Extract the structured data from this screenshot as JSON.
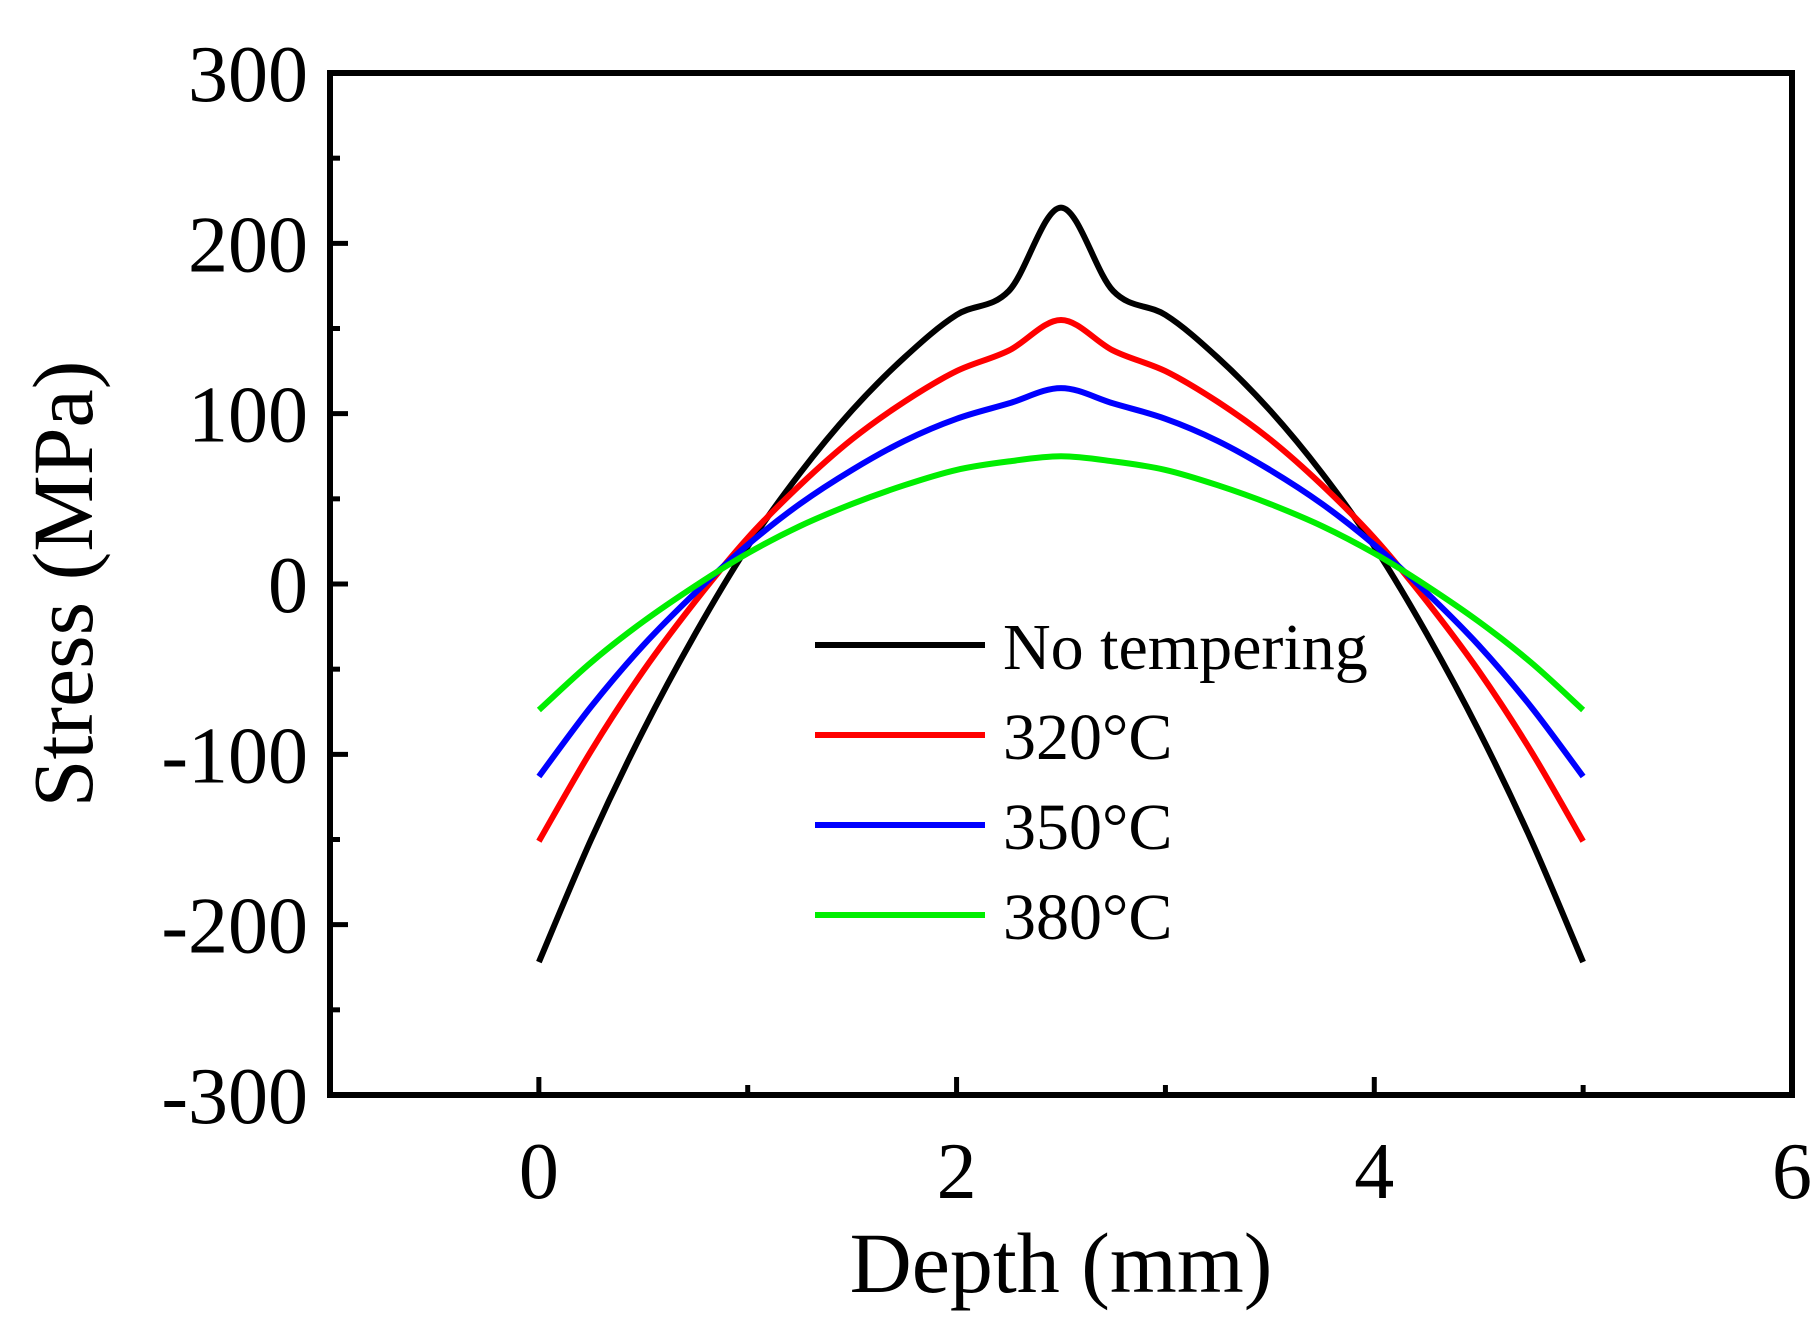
{
  "chart_data": {
    "type": "line",
    "title": "",
    "xlabel": "Depth (mm)",
    "ylabel": "Stress (MPa)",
    "xlim": [
      -1,
      6
    ],
    "ylim": [
      -300,
      300
    ],
    "xticks": [
      0,
      2,
      4,
      6
    ],
    "xtick_labels": [
      "0",
      "2",
      "4",
      "6"
    ],
    "yticks": [
      -300,
      -200,
      -100,
      0,
      100,
      200,
      300
    ],
    "ytick_labels": [
      "-300",
      "-200",
      "-100",
      "0",
      "100",
      "200",
      "300"
    ],
    "x": [
      0,
      0.25,
      0.5,
      0.75,
      1.0,
      1.25,
      1.5,
      1.75,
      2.0,
      2.25,
      2.5,
      2.75,
      3.0,
      3.25,
      3.5,
      3.75,
      4.0,
      4.25,
      4.5,
      4.75,
      5.0
    ],
    "series": [
      {
        "name": "No tempering",
        "color": "#000000",
        "values": [
          -222,
          -150,
          -86,
          -29,
          22,
          65,
          102,
          133,
          158,
          172,
          221,
          172,
          158,
          133,
          102,
          65,
          22,
          -29,
          -86,
          -150,
          -222
        ]
      },
      {
        "name": "320°C",
        "color": "#ff0000",
        "values": [
          -151,
          -98,
          -51,
          -10,
          27,
          58,
          85,
          107,
          125,
          137,
          155,
          137,
          125,
          107,
          85,
          58,
          27,
          -10,
          -51,
          -98,
          -151
        ]
      },
      {
        "name": "350°C",
        "color": "#0000ff",
        "values": [
          -113,
          -72,
          -36,
          -5,
          23,
          47,
          67,
          84,
          97,
          106,
          115,
          106,
          97,
          84,
          67,
          47,
          23,
          -5,
          -36,
          -72,
          -113
        ]
      },
      {
        "name": "380°C",
        "color": "#00ee00",
        "values": [
          -74,
          -46,
          -22,
          -1,
          18,
          34,
          47,
          58,
          67,
          72,
          75,
          72,
          67,
          58,
          47,
          34,
          18,
          -1,
          -22,
          -46,
          -74
        ]
      }
    ],
    "grid": false,
    "legend_position": "lower-center"
  }
}
